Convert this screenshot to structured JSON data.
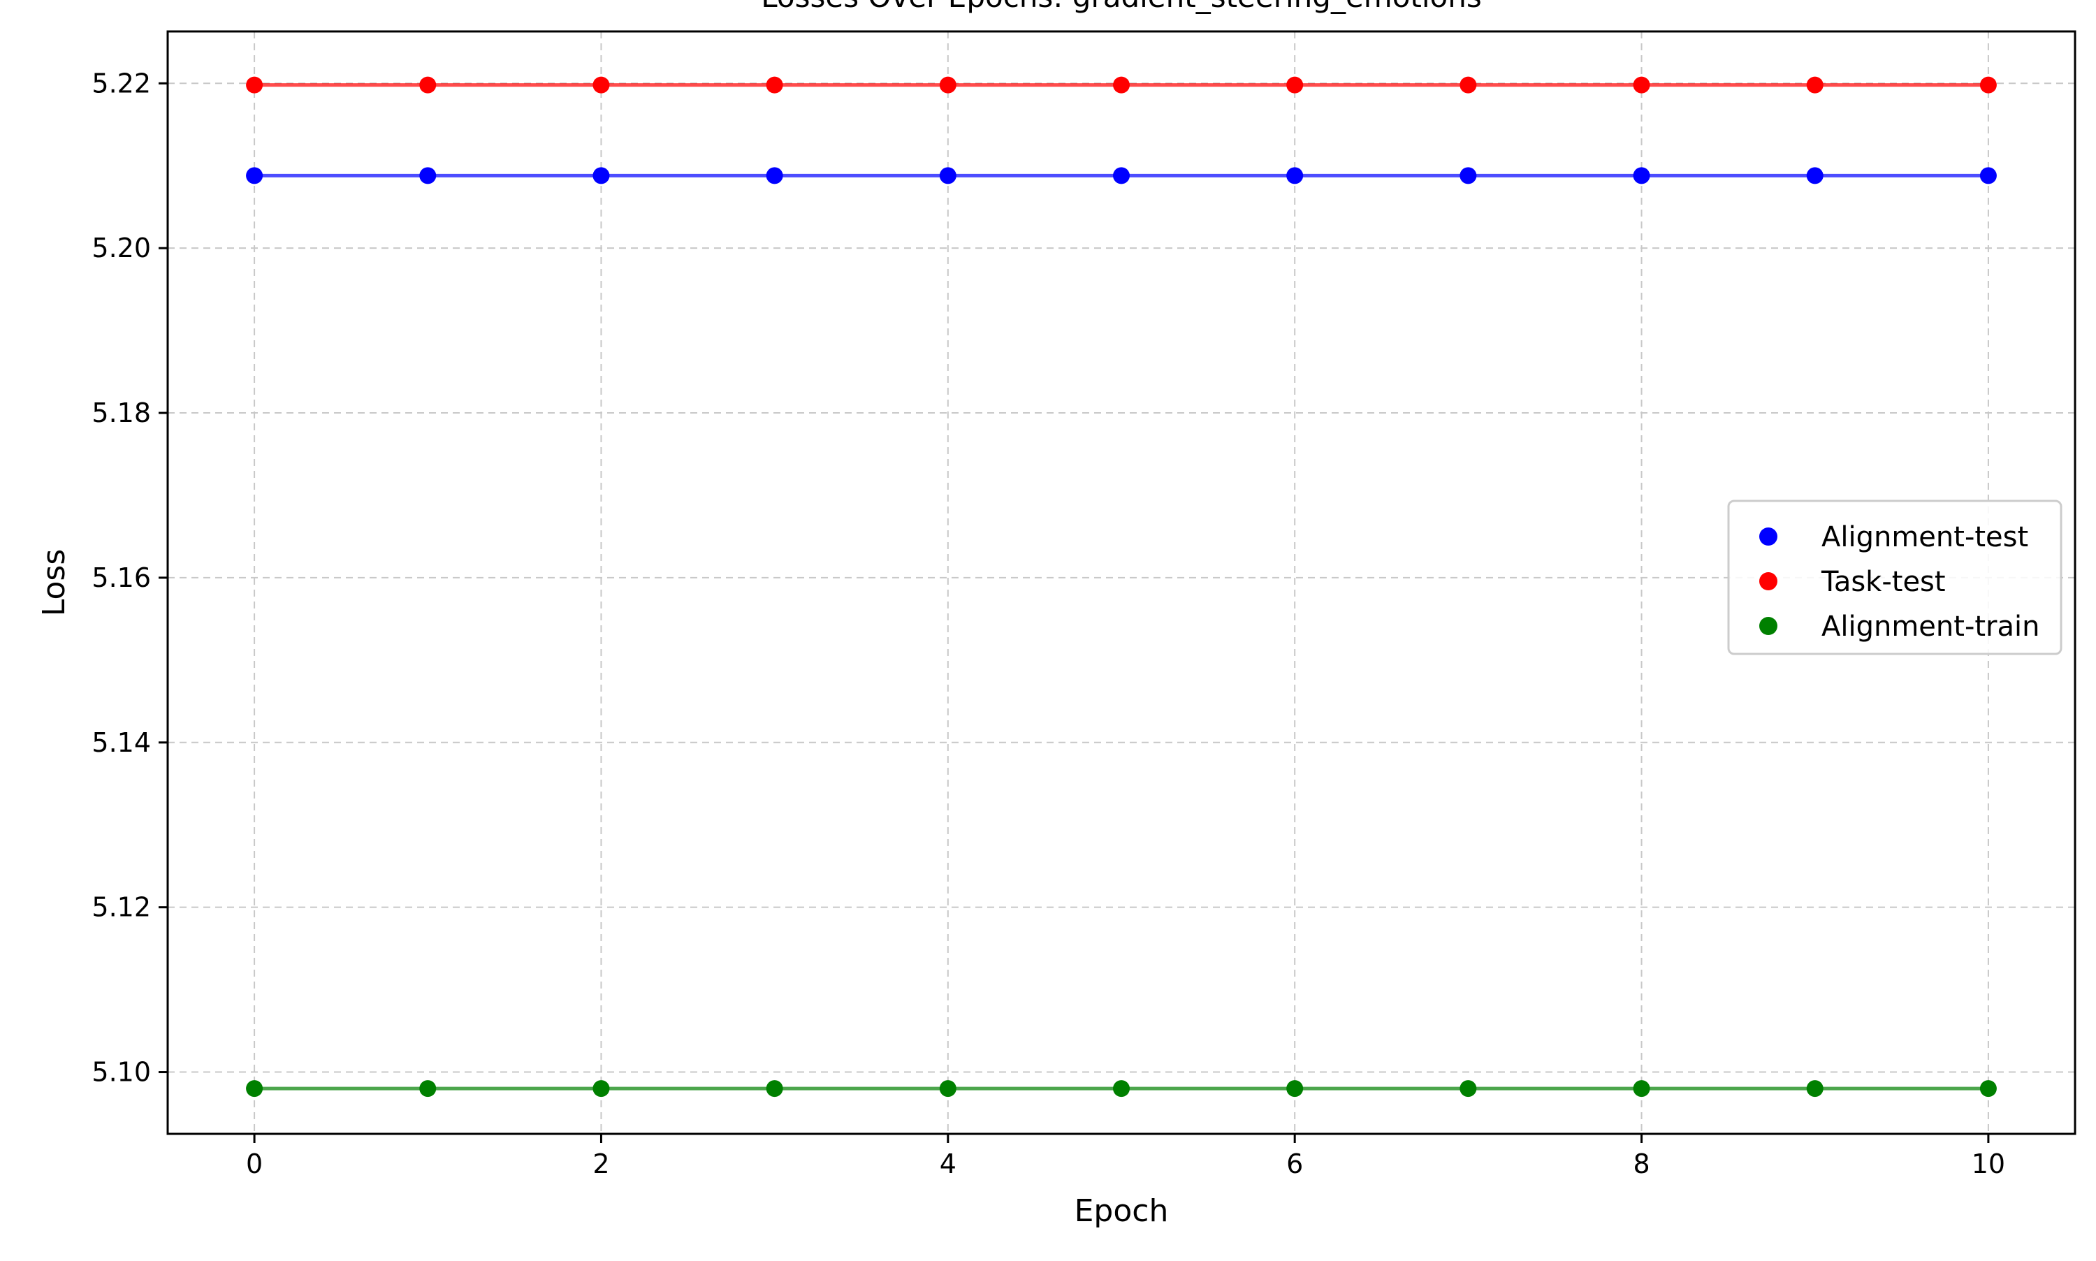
{
  "chart_data": {
    "type": "line",
    "title": "Losses Over Epochs: gradient_steering_emotions",
    "xlabel": "Epoch",
    "ylabel": "Loss",
    "x": [
      0,
      1,
      2,
      3,
      4,
      5,
      6,
      7,
      8,
      9,
      10
    ],
    "xlim": [
      -0.5,
      10.5
    ],
    "ylim": [
      5.0925,
      5.2263
    ],
    "xticks": [
      0,
      2,
      4,
      6,
      8,
      10
    ],
    "xtick_labels": [
      "0",
      "2",
      "4",
      "6",
      "8",
      "10"
    ],
    "yticks": [
      5.1,
      5.12,
      5.14,
      5.16,
      5.18,
      5.2,
      5.22
    ],
    "ytick_labels": [
      "5.10",
      "5.12",
      "5.14",
      "5.16",
      "5.18",
      "5.20",
      "5.22"
    ],
    "grid": true,
    "legend_position": "center-right",
    "series": [
      {
        "name": "Alignment-test",
        "color": "#0000ff",
        "values": [
          5.2088,
          5.2088,
          5.2088,
          5.2088,
          5.2088,
          5.2088,
          5.2088,
          5.2088,
          5.2088,
          5.2088,
          5.2088
        ]
      },
      {
        "name": "Task-test",
        "color": "#ff0000",
        "values": [
          5.2198,
          5.2198,
          5.2198,
          5.2198,
          5.2198,
          5.2198,
          5.2198,
          5.2198,
          5.2198,
          5.2198,
          5.2198
        ]
      },
      {
        "name": "Alignment-train",
        "color": "#008000",
        "values": [
          5.098,
          5.098,
          5.098,
          5.098,
          5.098,
          5.098,
          5.098,
          5.098,
          5.098,
          5.098,
          5.098
        ]
      }
    ]
  }
}
